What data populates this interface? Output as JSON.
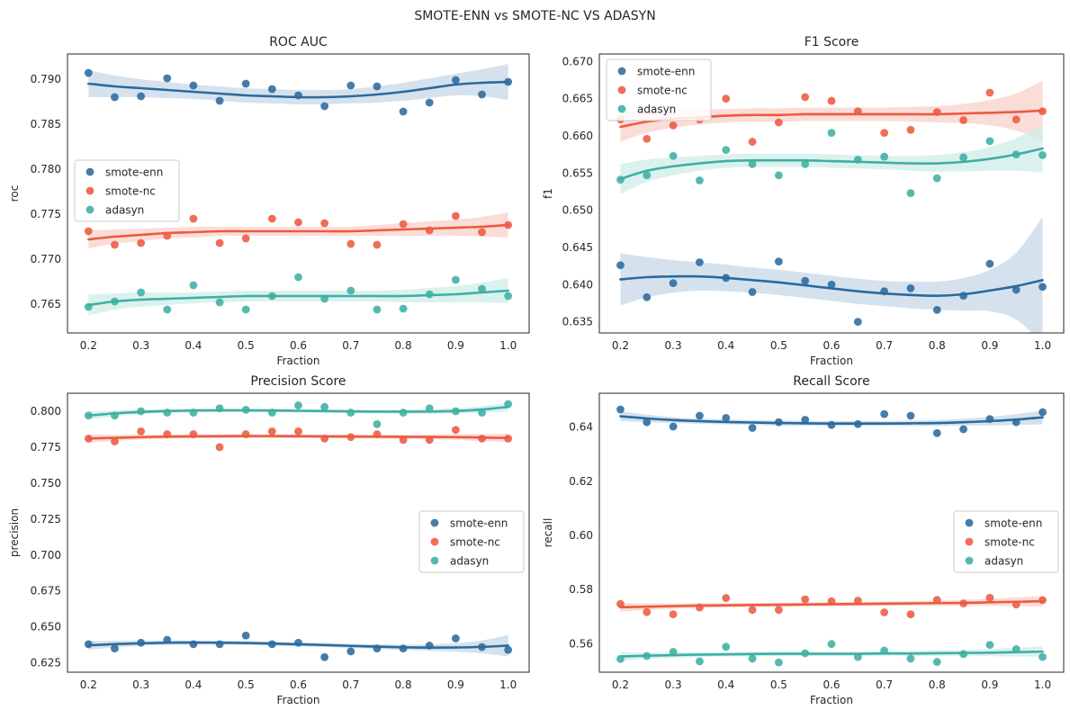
{
  "figure": {
    "suptitle": "SMOTE-ENN vs SMOTE-NC VS ADASYN"
  },
  "colors": {
    "smote-enn": "#2b6a9e",
    "smote-nc": "#ec5a41",
    "adasyn": "#3eafa3",
    "smote-enn-band": "#c7d8e8",
    "smote-nc-band": "#f9d2ca",
    "adasyn-band": "#cfece8"
  },
  "chart_data": [
    {
      "type": "scatter",
      "title": "ROC AUC",
      "xlabel": "Fraction",
      "ylabel": "roc",
      "xlim": [
        0.16,
        1.04
      ],
      "ylim": [
        0.7618,
        0.7928
      ],
      "xticks": [
        "0.2",
        "0.3",
        "0.4",
        "0.5",
        "0.6",
        "0.7",
        "0.8",
        "0.9",
        "1.0"
      ],
      "yticks": [
        "0.765",
        "0.770",
        "0.775",
        "0.780",
        "0.785",
        "0.790"
      ],
      "legend_position": "center-left",
      "x": [
        0.2,
        0.25,
        0.3,
        0.35,
        0.4,
        0.45,
        0.5,
        0.55,
        0.6,
        0.65,
        0.7,
        0.75,
        0.8,
        0.85,
        0.9,
        0.95,
        1.0
      ],
      "series": [
        {
          "name": "smote-enn",
          "values": [
            0.7907,
            0.788,
            0.7881,
            0.7901,
            0.7893,
            0.7876,
            0.7895,
            0.7889,
            0.7882,
            0.787,
            0.7893,
            0.7892,
            0.7864,
            0.7874,
            0.7899,
            0.7883,
            0.7897
          ],
          "fit": [
            0.7895,
            0.7892,
            0.789,
            0.7888,
            0.7886,
            0.7884,
            0.7882,
            0.7881,
            0.788,
            0.788,
            0.7881,
            0.7883,
            0.7886,
            0.789,
            0.7894,
            0.7896,
            0.7897
          ],
          "band": [
            0.0015,
            0.0012,
            0.001,
            0.0009,
            0.0008,
            0.0008,
            0.0008,
            0.0008,
            0.0008,
            0.0008,
            0.0008,
            0.0009,
            0.001,
            0.0011,
            0.0012,
            0.0015,
            0.002
          ]
        },
        {
          "name": "smote-nc",
          "values": [
            0.7731,
            0.7716,
            0.7718,
            0.7726,
            0.7745,
            0.7718,
            0.7723,
            0.7745,
            0.7741,
            0.774,
            0.7717,
            0.7716,
            0.7739,
            0.7732,
            0.7748,
            0.773,
            0.7738
          ],
          "fit": [
            0.7722,
            0.7725,
            0.7727,
            0.7729,
            0.773,
            0.7731,
            0.7731,
            0.7731,
            0.7731,
            0.7731,
            0.7731,
            0.7732,
            0.7733,
            0.7734,
            0.7735,
            0.7736,
            0.7738
          ],
          "band": [
            0.001,
            0.0008,
            0.0007,
            0.0006,
            0.0006,
            0.0005,
            0.0005,
            0.0005,
            0.0005,
            0.0005,
            0.0005,
            0.0006,
            0.0007,
            0.0008,
            0.0009,
            0.0011,
            0.0014
          ]
        },
        {
          "name": "adasyn",
          "values": [
            0.7647,
            0.7653,
            0.7663,
            0.7644,
            0.7671,
            0.7652,
            0.7644,
            0.7659,
            0.768,
            0.7656,
            0.7665,
            0.7644,
            0.7645,
            0.7661,
            0.7677,
            0.7667,
            0.7659
          ],
          "fit": [
            0.7649,
            0.7653,
            0.7655,
            0.7656,
            0.7657,
            0.7658,
            0.7659,
            0.7659,
            0.7659,
            0.7659,
            0.7659,
            0.7659,
            0.7659,
            0.766,
            0.7661,
            0.7663,
            0.7665
          ],
          "band": [
            0.0012,
            0.0009,
            0.0008,
            0.0007,
            0.0006,
            0.0006,
            0.0006,
            0.0006,
            0.0006,
            0.0006,
            0.0006,
            0.0006,
            0.0007,
            0.0008,
            0.0009,
            0.0011,
            0.0014
          ]
        }
      ]
    },
    {
      "type": "scatter",
      "title": "F1 Score",
      "xlabel": "Fraction",
      "ylabel": "f1",
      "xlim": [
        0.16,
        1.04
      ],
      "ylim": [
        0.6335,
        0.671
      ],
      "xticks": [
        "0.2",
        "0.3",
        "0.4",
        "0.5",
        "0.6",
        "0.7",
        "0.8",
        "0.9",
        "1.0"
      ],
      "yticks": [
        "0.635",
        "0.640",
        "0.645",
        "0.650",
        "0.655",
        "0.660",
        "0.665",
        "0.670"
      ],
      "legend_position": "top-left",
      "x": [
        0.2,
        0.25,
        0.3,
        0.35,
        0.4,
        0.45,
        0.5,
        0.55,
        0.6,
        0.65,
        0.7,
        0.75,
        0.8,
        0.85,
        0.9,
        0.95,
        1.0
      ],
      "series": [
        {
          "name": "smote-enn",
          "values": [
            0.6426,
            0.6383,
            0.6402,
            0.643,
            0.6409,
            0.639,
            0.6431,
            0.6405,
            0.64,
            0.635,
            0.6391,
            0.6395,
            0.6366,
            0.6385,
            0.6428,
            0.6393,
            0.6397
          ],
          "fit": [
            0.6407,
            0.641,
            0.6411,
            0.6411,
            0.6409,
            0.6406,
            0.6403,
            0.6399,
            0.6395,
            0.6391,
            0.6388,
            0.6386,
            0.6385,
            0.6387,
            0.6392,
            0.6398,
            0.6406
          ],
          "band": [
            0.0035,
            0.0027,
            0.0022,
            0.0019,
            0.0018,
            0.0017,
            0.0017,
            0.0017,
            0.0017,
            0.0017,
            0.0017,
            0.0018,
            0.0019,
            0.0022,
            0.0028,
            0.0045,
            0.0085
          ]
        },
        {
          "name": "smote-nc",
          "values": [
            0.6622,
            0.6596,
            0.6614,
            0.6622,
            0.665,
            0.6592,
            0.6618,
            0.6652,
            0.6647,
            0.6633,
            0.6604,
            0.6608,
            0.6632,
            0.6621,
            0.6658,
            0.6622,
            0.6633
          ],
          "fit": [
            0.6612,
            0.6619,
            0.6623,
            0.6625,
            0.6627,
            0.6628,
            0.6628,
            0.6629,
            0.6629,
            0.6629,
            0.6629,
            0.6629,
            0.6629,
            0.663,
            0.6631,
            0.6632,
            0.6634
          ],
          "band": [
            0.002,
            0.0015,
            0.0012,
            0.001,
            0.0009,
            0.0009,
            0.0009,
            0.0009,
            0.0009,
            0.0009,
            0.0009,
            0.001,
            0.0011,
            0.0013,
            0.0017,
            0.0025,
            0.004
          ]
        },
        {
          "name": "adasyn",
          "values": [
            0.6541,
            0.6547,
            0.6573,
            0.654,
            0.6581,
            0.6562,
            0.6547,
            0.6562,
            0.6604,
            0.6568,
            0.6572,
            0.6523,
            0.6543,
            0.6571,
            0.6593,
            0.6575,
            0.6574
          ],
          "fit": [
            0.6542,
            0.6553,
            0.6559,
            0.6563,
            0.6566,
            0.6567,
            0.6567,
            0.6567,
            0.6566,
            0.6565,
            0.6564,
            0.6563,
            0.6563,
            0.6565,
            0.6569,
            0.6575,
            0.6583
          ],
          "band": [
            0.002,
            0.0015,
            0.0012,
            0.001,
            0.0009,
            0.0009,
            0.0009,
            0.0009,
            0.0009,
            0.0009,
            0.0009,
            0.001,
            0.0011,
            0.0013,
            0.0016,
            0.0022,
            0.0032
          ]
        }
      ]
    },
    {
      "type": "scatter",
      "title": "Precision Score",
      "xlabel": "Fraction",
      "ylabel": "precision",
      "xlim": [
        0.16,
        1.04
      ],
      "ylim": [
        0.6185,
        0.8125
      ],
      "xticks": [
        "0.2",
        "0.3",
        "0.4",
        "0.5",
        "0.6",
        "0.7",
        "0.8",
        "0.9",
        "1.0"
      ],
      "yticks": [
        "0.625",
        "0.650",
        "0.675",
        "0.700",
        "0.725",
        "0.750",
        "0.775",
        "0.800"
      ],
      "legend_position": "center-right",
      "x": [
        0.2,
        0.25,
        0.3,
        0.35,
        0.4,
        0.45,
        0.5,
        0.55,
        0.6,
        0.65,
        0.7,
        0.75,
        0.8,
        0.85,
        0.9,
        0.95,
        1.0
      ],
      "series": [
        {
          "name": "smote-enn",
          "values": [
            0.638,
            0.635,
            0.639,
            0.641,
            0.638,
            0.638,
            0.644,
            0.638,
            0.639,
            0.629,
            0.633,
            0.635,
            0.635,
            0.637,
            0.642,
            0.636,
            0.634
          ],
          "fit": [
            0.6372,
            0.638,
            0.6386,
            0.639,
            0.6391,
            0.639,
            0.6388,
            0.6384,
            0.6379,
            0.6374,
            0.6368,
            0.6363,
            0.6358,
            0.6356,
            0.6357,
            0.6361,
            0.637
          ],
          "band": [
            0.003,
            0.0023,
            0.0019,
            0.0016,
            0.0015,
            0.0014,
            0.0014,
            0.0014,
            0.0014,
            0.0014,
            0.0015,
            0.0016,
            0.0018,
            0.0022,
            0.003,
            0.0045,
            0.0075
          ]
        },
        {
          "name": "smote-nc",
          "values": [
            0.781,
            0.779,
            0.786,
            0.784,
            0.784,
            0.775,
            0.784,
            0.786,
            0.786,
            0.781,
            0.782,
            0.784,
            0.78,
            0.78,
            0.787,
            0.781,
            0.781
          ],
          "fit": [
            0.781,
            0.7815,
            0.782,
            0.7823,
            0.7825,
            0.7826,
            0.7827,
            0.7827,
            0.7826,
            0.7825,
            0.7824,
            0.7823,
            0.7822,
            0.7821,
            0.782,
            0.7817,
            0.7814
          ],
          "band": [
            0.0028,
            0.0021,
            0.0017,
            0.0015,
            0.0014,
            0.0013,
            0.0013,
            0.0013,
            0.0013,
            0.0013,
            0.0013,
            0.0014,
            0.0015,
            0.0017,
            0.002,
            0.0024,
            0.003
          ]
        },
        {
          "name": "adasyn",
          "values": [
            0.797,
            0.797,
            0.8,
            0.799,
            0.799,
            0.802,
            0.801,
            0.799,
            0.804,
            0.803,
            0.799,
            0.791,
            0.799,
            0.802,
            0.8,
            0.799,
            0.805
          ],
          "fit": [
            0.797,
            0.7985,
            0.7995,
            0.8001,
            0.8005,
            0.8006,
            0.8006,
            0.8005,
            0.8003,
            0.8001,
            0.7999,
            0.7997,
            0.7997,
            0.7998,
            0.8002,
            0.8012,
            0.803
          ],
          "band": [
            0.0026,
            0.002,
            0.0016,
            0.0014,
            0.0013,
            0.0012,
            0.0012,
            0.0012,
            0.0012,
            0.0012,
            0.0012,
            0.0013,
            0.0014,
            0.0016,
            0.0019,
            0.0023,
            0.003
          ]
        }
      ]
    },
    {
      "type": "scatter",
      "title": "Recall Score",
      "xlabel": "Fraction",
      "ylabel": "recall",
      "xlim": [
        0.16,
        1.04
      ],
      "ylim": [
        0.5495,
        0.6525
      ],
      "xticks": [
        "0.2",
        "0.3",
        "0.4",
        "0.5",
        "0.6",
        "0.7",
        "0.8",
        "0.9",
        "1.0"
      ],
      "yticks": [
        "0.56",
        "0.58",
        "0.60",
        "0.62",
        "0.64"
      ],
      "legend_position": "center-right",
      "x": [
        0.2,
        0.25,
        0.3,
        0.35,
        0.4,
        0.45,
        0.5,
        0.55,
        0.6,
        0.65,
        0.7,
        0.75,
        0.8,
        0.85,
        0.9,
        0.95,
        1.0
      ],
      "series": [
        {
          "name": "smote-enn",
          "values": [
            0.6465,
            0.6418,
            0.6402,
            0.6442,
            0.6434,
            0.6397,
            0.6418,
            0.6427,
            0.6408,
            0.6411,
            0.6448,
            0.6442,
            0.6378,
            0.6392,
            0.643,
            0.6418,
            0.6455
          ],
          "fit": [
            0.644,
            0.6432,
            0.6426,
            0.6422,
            0.6419,
            0.6417,
            0.6415,
            0.6414,
            0.6413,
            0.6413,
            0.6413,
            0.6414,
            0.6415,
            0.6418,
            0.6422,
            0.6428,
            0.6436
          ],
          "band": [
            0.0018,
            0.0014,
            0.0011,
            0.001,
            0.0009,
            0.0009,
            0.0009,
            0.0009,
            0.0009,
            0.0009,
            0.0009,
            0.001,
            0.0011,
            0.0013,
            0.0016,
            0.002,
            0.0026
          ]
        },
        {
          "name": "smote-nc",
          "values": [
            0.5747,
            0.5717,
            0.5709,
            0.5734,
            0.5769,
            0.5725,
            0.5725,
            0.5764,
            0.5757,
            0.5759,
            0.5716,
            0.5709,
            0.5762,
            0.5749,
            0.577,
            0.5745,
            0.5761
          ],
          "fit": [
            0.5735,
            0.5737,
            0.5739,
            0.5741,
            0.5742,
            0.5743,
            0.5744,
            0.5745,
            0.5746,
            0.5747,
            0.5748,
            0.5749,
            0.575,
            0.5751,
            0.5753,
            0.5755,
            0.5757
          ],
          "band": [
            0.0016,
            0.0012,
            0.001,
            0.0009,
            0.0008,
            0.0008,
            0.0008,
            0.0008,
            0.0008,
            0.0008,
            0.0008,
            0.0009,
            0.001,
            0.0011,
            0.0013,
            0.0016,
            0.002
          ]
        },
        {
          "name": "adasyn",
          "values": [
            0.5544,
            0.5555,
            0.557,
            0.5535,
            0.5589,
            0.5545,
            0.5531,
            0.5565,
            0.5599,
            0.5551,
            0.5575,
            0.5545,
            0.5533,
            0.5562,
            0.5596,
            0.558,
            0.5551
          ],
          "fit": [
            0.5553,
            0.5556,
            0.5558,
            0.556,
            0.5561,
            0.5562,
            0.5563,
            0.5563,
            0.5563,
            0.5563,
            0.5564,
            0.5564,
            0.5565,
            0.5566,
            0.5567,
            0.5569,
            0.5571
          ],
          "band": [
            0.0016,
            0.0012,
            0.001,
            0.0009,
            0.0008,
            0.0008,
            0.0008,
            0.0008,
            0.0008,
            0.0008,
            0.0008,
            0.0009,
            0.001,
            0.0011,
            0.0013,
            0.0016,
            0.002
          ]
        }
      ]
    }
  ]
}
